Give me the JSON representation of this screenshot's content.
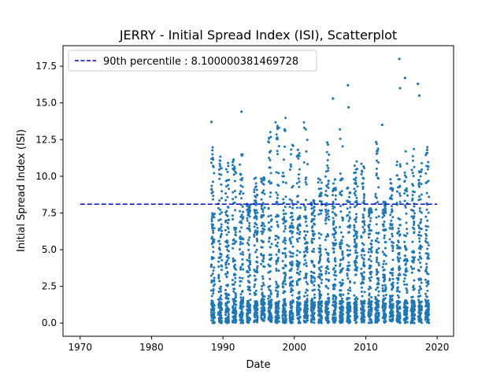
{
  "chart_data": {
    "type": "scatter",
    "title": "JERRY - Initial Spread Index (ISI), Scatterplot",
    "xlabel": "Date",
    "ylabel": "Initial Spread Index (ISI)",
    "xlim": [
      1967.6,
      2022.3
    ],
    "ylim": [
      -0.9,
      18.9
    ],
    "x_ticks": [
      {
        "value": 1970,
        "label": "1970"
      },
      {
        "value": 1980,
        "label": "1980"
      },
      {
        "value": 1990,
        "label": "1990"
      },
      {
        "value": 2000,
        "label": "2000"
      },
      {
        "value": 2010,
        "label": "2010"
      },
      {
        "value": 2020,
        "label": "2020"
      }
    ],
    "y_ticks": [
      {
        "value": 0.0,
        "label": "0.0"
      },
      {
        "value": 2.5,
        "label": "2.5"
      },
      {
        "value": 5.0,
        "label": "5.0"
      },
      {
        "value": 7.5,
        "label": "7.5"
      },
      {
        "value": 10.0,
        "label": "10.0"
      },
      {
        "value": 12.5,
        "label": "12.5"
      },
      {
        "value": 15.0,
        "label": "15.0"
      },
      {
        "value": 17.5,
        "label": "17.5"
      }
    ],
    "legend": {
      "position": "top-left"
    },
    "reference_line": {
      "label": "90th percentile : 8.100000381469728",
      "y": 8.100000381469728,
      "x_start": 1970,
      "x_end": 2020,
      "color": "#0000cc",
      "style": "dashed"
    },
    "series": [
      {
        "color": "#1f77b4",
        "season_years": [
          1988,
          1989,
          1990,
          1991,
          1992,
          1993,
          1994,
          1995,
          1996,
          1997,
          1998,
          1999,
          2000,
          2001,
          2002,
          2003,
          2004,
          2005,
          2006,
          2007,
          2008,
          2009,
          2010,
          2011,
          2012,
          2013,
          2014,
          2015,
          2016,
          2017,
          2018
        ],
        "season_start_fraction": 0.35,
        "season_end_fraction": 0.85,
        "note_points_per_season": 120,
        "highlighted_points": [
          {
            "x": 1988.4,
            "y": 13.7
          },
          {
            "x": 1992.6,
            "y": 14.4
          },
          {
            "x": 1998.7,
            "y": 13.1
          },
          {
            "x": 2000.5,
            "y": 11.8
          },
          {
            "x": 2004.6,
            "y": 12.3
          },
          {
            "x": 2005.4,
            "y": 15.3
          },
          {
            "x": 2007.5,
            "y": 16.2
          },
          {
            "x": 2007.6,
            "y": 14.7
          },
          {
            "x": 2012.3,
            "y": 13.5
          },
          {
            "x": 2014.7,
            "y": 18.0
          },
          {
            "x": 2014.8,
            "y": 16.0
          },
          {
            "x": 2015.5,
            "y": 16.7
          },
          {
            "x": 2017.3,
            "y": 16.3
          },
          {
            "x": 2017.5,
            "y": 15.5
          },
          {
            "x": 2018.6,
            "y": 11.8
          }
        ]
      }
    ]
  }
}
